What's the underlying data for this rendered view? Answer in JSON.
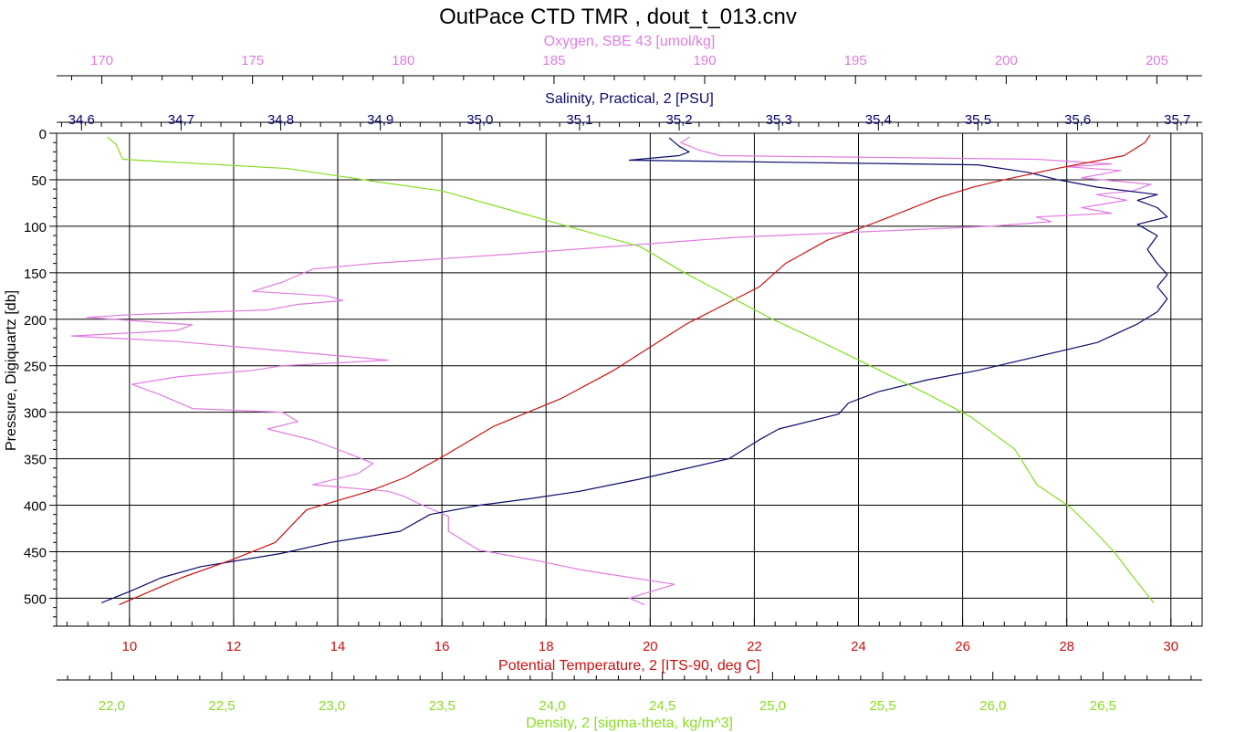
{
  "chart_data": {
    "type": "line",
    "title": "OutPace CTD TMR , dout_t_013.cnv",
    "grid": true,
    "y_axis": {
      "label": "Pressure, Digiquartz [db]",
      "min": 0,
      "max": 530,
      "inverted": true,
      "ticks": [
        0,
        50,
        100,
        150,
        200,
        250,
        300,
        350,
        400,
        450,
        500
      ],
      "tick_labels": [
        "0",
        "50",
        "100",
        "150",
        "200",
        "250",
        "300",
        "350",
        "400",
        "450",
        "500"
      ]
    },
    "axes": {
      "oxygen": {
        "label": "Oxygen, SBE 43 [umol/kg]",
        "color": "#e07ce0",
        "position": "top-outer",
        "min": 168.5,
        "max": 206.5,
        "ticks": [
          170,
          175,
          180,
          185,
          190,
          195,
          200,
          205
        ],
        "tick_labels": [
          "170",
          "175",
          "180",
          "185",
          "190",
          "195",
          "200",
          "205"
        ]
      },
      "salinity": {
        "label": "Salinity, Practical, 2 [PSU]",
        "color": "#0a0a6e",
        "position": "top-inner",
        "min": 34.575,
        "max": 35.725,
        "ticks": [
          34.6,
          34.7,
          34.8,
          34.9,
          35.0,
          35.1,
          35.2,
          35.3,
          35.4,
          35.5,
          35.6,
          35.7
        ],
        "tick_labels": [
          "34,6",
          "34,7",
          "34,8",
          "34,9",
          "35,0",
          "35,1",
          "35,2",
          "35,3",
          "35,4",
          "35,5",
          "35,6",
          "35,7"
        ]
      },
      "temperature": {
        "label": "Potential Temperature, 2 [ITS-90, deg C]",
        "color": "#cc1111",
        "position": "bottom-inner",
        "min": 8.6,
        "max": 30.6,
        "ticks": [
          10,
          12,
          14,
          16,
          18,
          20,
          22,
          24,
          26,
          28,
          30
        ],
        "tick_labels": [
          "10",
          "12",
          "14",
          "16",
          "18",
          "20",
          "22",
          "24",
          "26",
          "28",
          "30"
        ]
      },
      "density": {
        "label": "Density, 2 [sigma-theta, kg/m^3]",
        "color": "#88dd22",
        "position": "bottom-outer",
        "min": 21.75,
        "max": 26.95,
        "ticks": [
          22.0,
          22.5,
          23.0,
          23.5,
          24.0,
          24.5,
          25.0,
          25.5,
          26.0,
          26.5
        ],
        "tick_labels": [
          "22,0",
          "22,5",
          "23,0",
          "23,5",
          "24,0",
          "24,5",
          "25,0",
          "25,5",
          "26,0",
          "26,5"
        ]
      }
    },
    "series": [
      {
        "name": "Oxygen, SBE 43 [umol/kg]",
        "axis": "oxygen",
        "color": "#e07ce0",
        "x": [
          189.5,
          189.2,
          189.8,
          190.5,
          201.0,
          203.5,
          202.0,
          203.8,
          202.5,
          204.8,
          204.2,
          203.0,
          204.0,
          202.5,
          203.5,
          201.0,
          201.5,
          199.5,
          191.0,
          183.5,
          179.0,
          177.0,
          176.0,
          175.0,
          177.5,
          178.0,
          176.5,
          175.5,
          171.0,
          169.5,
          173.0,
          172.5,
          169.0,
          172.5,
          179.5,
          176.0,
          175.0,
          172.5,
          171.0,
          172.0,
          173.0,
          176.0,
          176.5,
          175.5,
          177.0,
          178.0,
          179.0,
          178.5,
          177.0,
          179.5,
          180.0,
          180.5,
          181.5,
          181.5,
          182.5,
          184.5,
          186.0,
          189.0,
          187.5,
          188.0
        ],
        "y": [
          4,
          10,
          18,
          24,
          28,
          33,
          36,
          40,
          48,
          55,
          62,
          66,
          72,
          80,
          86,
          90,
          95,
          100,
          112,
          130,
          140,
          146,
          160,
          170,
          175,
          180,
          184,
          190,
          195,
          198,
          206,
          212,
          218,
          224,
          244,
          250,
          255,
          262,
          270,
          282,
          296,
          300,
          310,
          318,
          330,
          342,
          355,
          366,
          378,
          385,
          390,
          398,
          412,
          428,
          448,
          460,
          470,
          485,
          500,
          507
        ]
      },
      {
        "name": "Salinity, Practical, 2 [PSU]",
        "axis": "salinity",
        "color": "#0a0a6e",
        "x": [
          35.19,
          35.2,
          35.21,
          35.2,
          35.15,
          35.5,
          35.55,
          35.58,
          35.62,
          35.68,
          35.66,
          35.68,
          35.69,
          35.66,
          35.68,
          35.67,
          35.68,
          35.69,
          35.68,
          35.69,
          35.68,
          35.66,
          35.64,
          35.62,
          35.58,
          35.54,
          35.5,
          35.45,
          35.4,
          35.37,
          35.36,
          35.3,
          35.28,
          35.25,
          35.16,
          35.1,
          35.05,
          35.0,
          34.95,
          34.92,
          34.85,
          34.8,
          34.72,
          34.68,
          34.65,
          34.62
        ],
        "y": [
          5,
          14,
          20,
          24,
          29,
          34,
          42,
          50,
          58,
          66,
          72,
          80,
          90,
          98,
          110,
          125,
          140,
          152,
          165,
          178,
          192,
          205,
          215,
          225,
          235,
          245,
          255,
          265,
          278,
          290,
          302,
          318,
          330,
          350,
          372,
          385,
          393,
          400,
          410,
          428,
          440,
          452,
          466,
          478,
          492,
          505
        ]
      },
      {
        "name": "Potential Temperature, 2 [ITS-90, deg C]",
        "axis": "temperature",
        "color": "#cc1111",
        "x": [
          29.6,
          29.5,
          29.1,
          27.8,
          26.8,
          26.2,
          25.5,
          24.6,
          23.9,
          23.4,
          22.6,
          22.1,
          21.4,
          20.7,
          20.0,
          19.3,
          18.3,
          17.0,
          16.1,
          15.3,
          14.6,
          13.4,
          12.8,
          12.0,
          11.0,
          10.3,
          9.8
        ],
        "y": [
          2,
          10,
          24,
          38,
          50,
          58,
          70,
          90,
          105,
          115,
          140,
          165,
          185,
          205,
          230,
          255,
          285,
          315,
          345,
          370,
          385,
          405,
          440,
          458,
          478,
          495,
          507
        ]
      },
      {
        "name": "Density, 2 [sigma-theta, kg/m^3]",
        "axis": "density",
        "color": "#88dd22",
        "x": [
          21.98,
          22.02,
          22.05,
          22.2,
          22.8,
          23.0,
          23.2,
          23.5,
          23.8,
          24.1,
          24.4,
          24.6,
          24.8,
          25.0,
          25.2,
          25.4,
          25.7,
          25.9,
          26.1,
          26.2,
          26.35,
          26.45,
          26.55,
          26.63,
          26.73
        ],
        "y": [
          4,
          12,
          28,
          30,
          38,
          45,
          52,
          62,
          82,
          102,
          122,
          150,
          175,
          200,
          222,
          245,
          280,
          305,
          340,
          378,
          402,
          425,
          450,
          475,
          505
        ]
      }
    ]
  }
}
